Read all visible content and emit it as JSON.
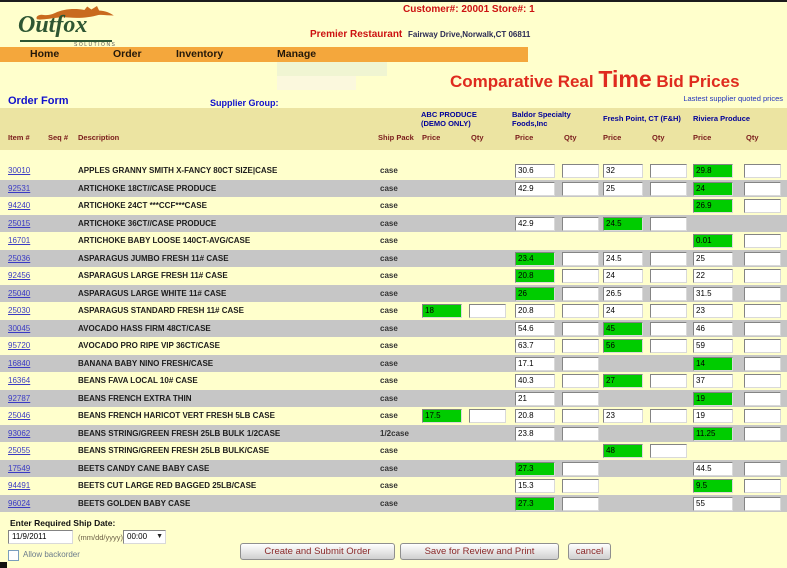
{
  "header": {
    "brand": "Outfox",
    "brand_sub": "SOLUTIONS",
    "customer_info": "Customer#: 20001  Store#: 1",
    "restaurant_name": "Premier Restaurant",
    "address": "Fairway Drive,Norwalk,CT 06811"
  },
  "nav": {
    "items": [
      {
        "label": "Home"
      },
      {
        "label": "Order"
      },
      {
        "label": "Inventory"
      },
      {
        "label": "Manage"
      }
    ]
  },
  "title": {
    "lead": "Comparative Real",
    "emph": "Time",
    "tail": "Bid Prices"
  },
  "note": "Lastest supplier quoted prices",
  "form_bar": {
    "title": "Order Form",
    "supplier_group_label": "Supplier Group:"
  },
  "table": {
    "columns": {
      "item": "Item #",
      "seq": "Seq #",
      "description": "Description",
      "ship_pack": "Ship Pack",
      "price": "Price",
      "qty": "Qty"
    },
    "suppliers": [
      "ABC PRODUCE (DEMO ONLY)",
      "Baldor Specialty Foods,Inc",
      "Fresh Point, CT (F&H)",
      "Riviera Produce"
    ],
    "rows": [
      {
        "item": "30010",
        "description": "APPLES GRANNY SMITH X-FANCY 80CT SIZE|CASE",
        "ship_pack": "case",
        "prices": [
          null,
          {
            "value": "30.6",
            "best": false
          },
          {
            "value": "32",
            "best": false
          },
          {
            "value": "29.8",
            "best": true
          }
        ]
      },
      {
        "item": "92531",
        "description": "ARTICHOKE 18CT//CASE PRODUCE",
        "ship_pack": "case",
        "prices": [
          null,
          {
            "value": "42.9",
            "best": false
          },
          {
            "value": "25",
            "best": false
          },
          {
            "value": "24",
            "best": true
          }
        ]
      },
      {
        "item": "94240",
        "description": "ARTICHOKE 24CT ***CCF***CASE",
        "ship_pack": "case",
        "prices": [
          null,
          null,
          null,
          {
            "value": "26.9",
            "best": true
          }
        ]
      },
      {
        "item": "25015",
        "description": "ARTICHOKE 36CT//CASE PRODUCE",
        "ship_pack": "case",
        "prices": [
          null,
          {
            "value": "42.9",
            "best": false
          },
          {
            "value": "24.5",
            "best": true
          },
          null
        ]
      },
      {
        "item": "16701",
        "description": "ARTICHOKE BABY LOOSE 140CT-AVG/CASE",
        "ship_pack": "case",
        "prices": [
          null,
          null,
          null,
          {
            "value": "0.01",
            "best": true
          }
        ]
      },
      {
        "item": "25036",
        "description": "ASPARAGUS JUMBO FRESH 11# CASE",
        "ship_pack": "case",
        "prices": [
          null,
          {
            "value": "23.4",
            "best": true
          },
          {
            "value": "24.5",
            "best": false
          },
          {
            "value": "25",
            "best": false
          }
        ]
      },
      {
        "item": "92456",
        "description": "ASPARAGUS LARGE FRESH 11# CASE",
        "ship_pack": "case",
        "prices": [
          null,
          {
            "value": "20.8",
            "best": true
          },
          {
            "value": "24",
            "best": false
          },
          {
            "value": "22",
            "best": false
          }
        ]
      },
      {
        "item": "25040",
        "description": "ASPARAGUS LARGE WHITE 11# CASE",
        "ship_pack": "case",
        "prices": [
          null,
          {
            "value": "26",
            "best": true
          },
          {
            "value": "26.5",
            "best": false
          },
          {
            "value": "31.5",
            "best": false
          }
        ]
      },
      {
        "item": "25030",
        "description": "ASPARAGUS STANDARD FRESH 11# CASE",
        "ship_pack": "case",
        "prices": [
          {
            "value": "18",
            "best": true
          },
          {
            "value": "20.8",
            "best": false
          },
          {
            "value": "24",
            "best": false
          },
          {
            "value": "23",
            "best": false
          }
        ]
      },
      {
        "item": "30045",
        "description": "AVOCADO HASS FIRM 48CT/CASE",
        "ship_pack": "case",
        "prices": [
          null,
          {
            "value": "54.6",
            "best": false
          },
          {
            "value": "45",
            "best": true
          },
          {
            "value": "46",
            "best": false
          }
        ]
      },
      {
        "item": "95720",
        "description": "AVOCADO PRO RIPE VIP 36CT/CASE",
        "ship_pack": "case",
        "prices": [
          null,
          {
            "value": "63.7",
            "best": false
          },
          {
            "value": "56",
            "best": true
          },
          {
            "value": "59",
            "best": false
          }
        ]
      },
      {
        "item": "16840",
        "description": "BANANA BABY NINO FRESH/CASE",
        "ship_pack": "case",
        "prices": [
          null,
          {
            "value": "17.1",
            "best": false
          },
          null,
          {
            "value": "14",
            "best": true
          }
        ]
      },
      {
        "item": "16364",
        "description": "BEANS FAVA LOCAL 10# CASE",
        "ship_pack": "case",
        "prices": [
          null,
          {
            "value": "40.3",
            "best": false
          },
          {
            "value": "27",
            "best": true
          },
          {
            "value": "37",
            "best": false
          }
        ]
      },
      {
        "item": "92787",
        "description": "BEANS FRENCH EXTRA THIN",
        "ship_pack": "case",
        "prices": [
          null,
          {
            "value": "21",
            "best": false
          },
          null,
          {
            "value": "19",
            "best": true
          }
        ]
      },
      {
        "item": "25046",
        "description": "BEANS FRENCH HARICOT VERT FRESH 5LB CASE",
        "ship_pack": "case",
        "prices": [
          {
            "value": "17.5",
            "best": true
          },
          {
            "value": "20.8",
            "best": false
          },
          {
            "value": "23",
            "best": false
          },
          {
            "value": "19",
            "best": false
          }
        ]
      },
      {
        "item": "93062",
        "description": "BEANS STRING/GREEN FRESH 25LB BULK 1/2CASE",
        "ship_pack": "1/2case",
        "prices": [
          null,
          {
            "value": "23.8",
            "best": false
          },
          null,
          {
            "value": "11.25",
            "best": true
          }
        ]
      },
      {
        "item": "25055",
        "description": "BEANS STRING/GREEN FRESH 25LB BULK/CASE",
        "ship_pack": "case",
        "prices": [
          null,
          null,
          {
            "value": "48",
            "best": true
          },
          null
        ]
      },
      {
        "item": "17549",
        "description": "BEETS CANDY CANE BABY CASE",
        "ship_pack": "case",
        "prices": [
          null,
          {
            "value": "27.3",
            "best": true
          },
          null,
          {
            "value": "44.5",
            "best": false
          }
        ]
      },
      {
        "item": "94491",
        "description": "BEETS CUT LARGE RED BAGGED 25LB/CASE",
        "ship_pack": "case",
        "prices": [
          null,
          {
            "value": "15.3",
            "best": false
          },
          null,
          {
            "value": "9.5",
            "best": true
          }
        ]
      },
      {
        "item": "96024",
        "description": "BEETS GOLDEN BABY CASE",
        "ship_pack": "case",
        "prices": [
          null,
          {
            "value": "27.3",
            "best": true
          },
          null,
          {
            "value": "55",
            "best": false
          }
        ]
      }
    ]
  },
  "footer": {
    "ship_date_label": "Enter Required Ship Date:",
    "ship_date_value": "11/9/2011",
    "date_format_hint": "(mm/dd/yyyy)",
    "time_value": "00:00",
    "backorder_label": "Allow backorder",
    "buttons": [
      {
        "label": "Create and Submit Order"
      },
      {
        "label": "Save for Review and Print"
      },
      {
        "label": "cancel"
      }
    ]
  },
  "colors": {
    "page_background": "#FFFFCC",
    "nav_bar_orange": "#F4A73C",
    "best_bid_green": "#00CC00",
    "row_alt_gray": "#C6C6C6",
    "title_red": "#DF2B1E",
    "supplier_header_navy": "#000099",
    "link_blue": "#3B3BC4"
  }
}
